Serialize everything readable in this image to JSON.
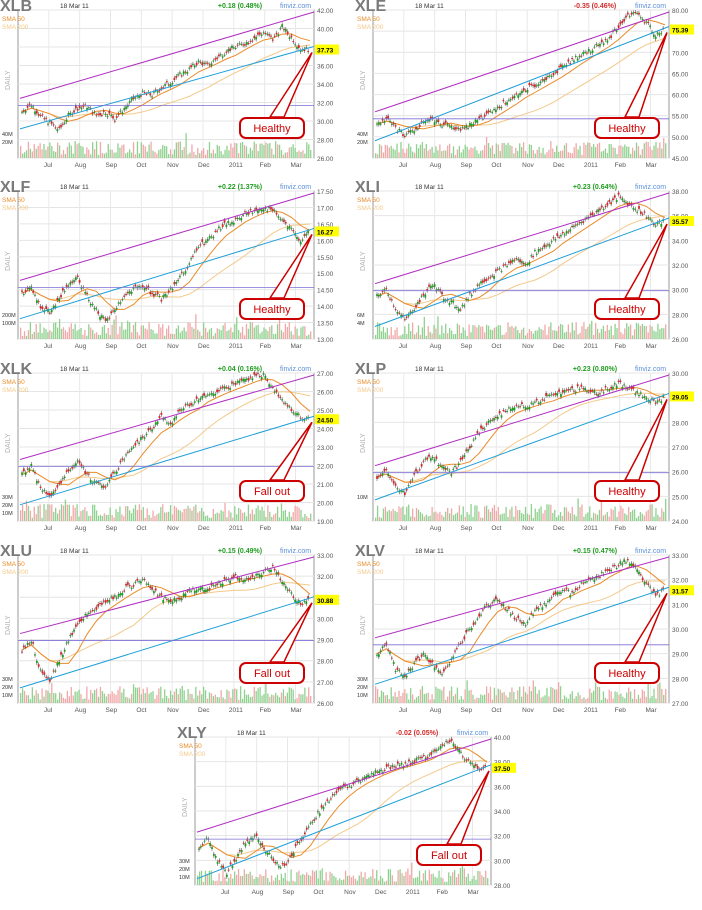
{
  "chart_data": [
    {
      "type": "candlestick",
      "ticker": "XLB",
      "date": "18 Mar 11",
      "change": "+0.18 (0.48%)",
      "change_sign": "up",
      "watermark": "finviz.com",
      "sma_labels": [
        "SMA 50",
        "SMA 200"
      ],
      "period_label": "DAILY",
      "x_labels": [
        "Jul",
        "Aug",
        "Sep",
        "Oct",
        "Nov",
        "Dec",
        "2011",
        "Feb",
        "Mar"
      ],
      "y_ticks": [
        "42.00",
        "40.00",
        "38.00",
        "36.00",
        "34.00",
        "32.00",
        "30.00",
        "28.00",
        "26.00"
      ],
      "ylim": [
        26,
        42
      ],
      "volume_ticks": [
        "40M",
        "20M"
      ],
      "last_price": "37.73",
      "close_series": [
        31.0,
        31.8,
        30.5,
        29.8,
        29.0,
        30.6,
        31.4,
        31.6,
        30.6,
        31.0,
        30.2,
        31.4,
        32.4,
        33.0,
        32.8,
        33.6,
        34.2,
        35.0,
        35.6,
        36.4,
        36.0,
        36.8,
        37.6,
        38.0,
        38.4,
        39.0,
        39.6,
        38.8,
        40.2,
        39.0,
        37.8,
        37.73
      ],
      "annotation": "Healthy",
      "callout_color": "#cc0000"
    },
    {
      "type": "candlestick",
      "ticker": "XLE",
      "date": "18 Mar 11",
      "change": "-0.35 (0.46%)",
      "change_sign": "down",
      "watermark": "finviz.com",
      "sma_labels": [
        "SMA 50",
        "SMA 200"
      ],
      "period_label": "DAILY",
      "x_labels": [
        "Jul",
        "Aug",
        "Sep",
        "Oct",
        "Nov",
        "Dec",
        "2011",
        "Feb",
        "Mar"
      ],
      "y_ticks": [
        "80.00",
        "75.00",
        "70.00",
        "65.00",
        "60.00",
        "55.00",
        "50.00",
        "45.00"
      ],
      "ylim": [
        45,
        80
      ],
      "volume_ticks": [
        "40M",
        "20M"
      ],
      "last_price": "75.39",
      "close_series": [
        53.0,
        54.5,
        52.0,
        50.5,
        51.5,
        53.5,
        54.0,
        53.0,
        52.5,
        51.5,
        53.0,
        54.5,
        55.5,
        57.0,
        58.5,
        60.0,
        61.5,
        62.0,
        63.5,
        65.0,
        66.5,
        68.0,
        69.5,
        70.5,
        72.0,
        73.5,
        76.0,
        78.5,
        79.5,
        77.0,
        74.0,
        75.39
      ],
      "annotation": "Healthy",
      "callout_color": "#cc0000"
    },
    {
      "type": "candlestick",
      "ticker": "XLF",
      "date": "18 Mar 11",
      "change": "+0.22 (1.37%)",
      "change_sign": "up",
      "watermark": "finviz.com",
      "sma_labels": [
        "SMA 50",
        "SMA 200"
      ],
      "period_label": "DAILY",
      "x_labels": [
        "Jul",
        "Aug",
        "Sep",
        "Oct",
        "Nov",
        "Dec",
        "2011",
        "Feb",
        "Mar"
      ],
      "y_ticks": [
        "17.50",
        "17.00",
        "16.50",
        "16.00",
        "15.50",
        "15.00",
        "14.50",
        "14.00",
        "13.50",
        "13.00"
      ],
      "ylim": [
        13,
        17.5
      ],
      "volume_ticks": [
        "200M",
        "100M"
      ],
      "last_price": "16.27",
      "close_series": [
        14.4,
        14.6,
        14.0,
        13.8,
        14.2,
        14.7,
        14.9,
        14.3,
        13.9,
        13.5,
        13.9,
        14.3,
        14.5,
        14.6,
        14.4,
        14.2,
        14.5,
        14.9,
        15.3,
        15.8,
        16.0,
        16.3,
        16.5,
        16.6,
        16.8,
        16.9,
        17.0,
        16.9,
        16.6,
        16.3,
        16.0,
        16.27
      ],
      "annotation": "Healthy",
      "callout_color": "#cc0000"
    },
    {
      "type": "candlestick",
      "ticker": "XLI",
      "date": "18 Mar 11",
      "change": "+0.23 (0.64%)",
      "change_sign": "up",
      "watermark": "finviz.com",
      "sma_labels": [
        "SMA 50",
        "SMA 200"
      ],
      "period_label": "DAILY",
      "x_labels": [
        "Jul",
        "Aug",
        "Sep",
        "Oct",
        "Nov",
        "Dec",
        "2011",
        "Feb",
        "Mar"
      ],
      "y_ticks": [
        "38.00",
        "36.00",
        "34.00",
        "32.00",
        "30.00",
        "28.00",
        "26.00"
      ],
      "ylim": [
        26,
        38
      ],
      "volume_ticks": [
        "6M",
        "4M"
      ],
      "last_price": "35.57",
      "close_series": [
        29.5,
        30.0,
        28.5,
        27.5,
        28.5,
        29.5,
        30.5,
        29.5,
        29.0,
        28.5,
        29.5,
        30.5,
        31.0,
        31.5,
        32.0,
        32.5,
        32.0,
        33.0,
        33.5,
        34.0,
        34.5,
        35.0,
        35.5,
        36.0,
        36.5,
        37.0,
        37.5,
        37.0,
        36.5,
        36.0,
        35.3,
        35.57
      ],
      "annotation": "Healthy",
      "callout_color": "#cc0000"
    },
    {
      "type": "candlestick",
      "ticker": "XLK",
      "date": "18 Mar 11",
      "change": "+0.04 (0.16%)",
      "change_sign": "up",
      "watermark": "finviz.com",
      "sma_labels": [
        "SMA 50",
        "SMA 200"
      ],
      "period_label": "DAILY",
      "x_labels": [
        "Jul",
        "Aug",
        "Sep",
        "Oct",
        "Nov",
        "Dec",
        "2011",
        "Feb",
        "Mar"
      ],
      "y_ticks": [
        "27.00",
        "26.00",
        "25.00",
        "24.00",
        "23.00",
        "22.00",
        "21.00",
        "20.00",
        "19.00"
      ],
      "ylim": [
        19,
        27
      ],
      "volume_ticks": [
        "30M",
        "20M",
        "10M"
      ],
      "last_price": "24.50",
      "close_series": [
        21.5,
        22.0,
        20.8,
        20.2,
        21.0,
        21.8,
        22.2,
        21.5,
        21.0,
        20.8,
        21.6,
        22.4,
        23.0,
        23.5,
        24.0,
        24.6,
        24.2,
        25.0,
        25.3,
        25.6,
        25.8,
        26.0,
        26.2,
        26.4,
        26.6,
        26.8,
        26.9,
        26.2,
        25.6,
        25.0,
        24.6,
        24.5
      ],
      "annotation": "Fall out",
      "callout_color": "#cc0000"
    },
    {
      "type": "candlestick",
      "ticker": "XLP",
      "date": "18 Mar 11",
      "change": "+0.23 (0.80%)",
      "change_sign": "up",
      "watermark": "finviz.com",
      "sma_labels": [
        "SMA 50",
        "SMA 200"
      ],
      "period_label": "DAILY",
      "x_labels": [
        "Jul",
        "Aug",
        "Sep",
        "Oct",
        "Nov",
        "Dec",
        "2011",
        "Feb",
        "Mar"
      ],
      "y_ticks": [
        "30.00",
        "29.00",
        "28.00",
        "27.00",
        "26.00",
        "25.00",
        "24.00"
      ],
      "ylim": [
        24,
        30
      ],
      "volume_ticks": [
        "10M"
      ],
      "last_price": "29.05",
      "close_series": [
        25.8,
        26.0,
        25.4,
        25.1,
        25.8,
        26.4,
        26.6,
        26.2,
        26.0,
        26.4,
        27.0,
        27.6,
        28.0,
        28.3,
        28.5,
        28.7,
        28.6,
        28.8,
        29.0,
        29.1,
        29.2,
        29.3,
        29.4,
        29.3,
        29.2,
        29.4,
        29.6,
        29.4,
        29.2,
        29.0,
        28.8,
        29.05
      ],
      "annotation": "Healthy",
      "callout_color": "#cc0000"
    },
    {
      "type": "candlestick",
      "ticker": "XLU",
      "date": "18 Mar 11",
      "change": "+0.15 (0.49%)",
      "change_sign": "up",
      "watermark": "finviz.com",
      "sma_labels": [
        "SMA 50",
        "SMA 200"
      ],
      "period_label": "DAILY",
      "x_labels": [
        "Jul",
        "Aug",
        "Sep",
        "Oct",
        "Nov",
        "Dec",
        "2011",
        "Feb",
        "Mar"
      ],
      "y_ticks": [
        "33.00",
        "32.00",
        "31.00",
        "30.00",
        "29.00",
        "28.00",
        "27.00",
        "26.00"
      ],
      "ylim": [
        26,
        33
      ],
      "volume_ticks": [
        "30M",
        "20M",
        "10M"
      ],
      "last_price": "30.88",
      "close_series": [
        28.5,
        29.0,
        27.5,
        27.0,
        28.0,
        29.0,
        29.8,
        30.2,
        30.5,
        30.8,
        31.0,
        31.4,
        31.6,
        31.8,
        31.4,
        31.0,
        30.8,
        31.0,
        31.3,
        31.5,
        31.4,
        31.6,
        31.8,
        32.0,
        31.8,
        32.0,
        32.2,
        32.4,
        31.8,
        31.2,
        30.7,
        30.88
      ],
      "annotation": "Fall out",
      "callout_color": "#cc0000"
    },
    {
      "type": "candlestick",
      "ticker": "XLV",
      "date": "18 Mar 11",
      "change": "+0.15 (0.47%)",
      "change_sign": "up",
      "watermark": "finviz.com",
      "sma_labels": [
        "SMA 50",
        "SMA 200"
      ],
      "period_label": "DAILY",
      "x_labels": [
        "Jul",
        "Aug",
        "Sep",
        "Oct",
        "Nov",
        "Dec",
        "2011",
        "Feb",
        "Mar"
      ],
      "y_ticks": [
        "33.00",
        "32.00",
        "31.00",
        "30.00",
        "29.00",
        "28.00",
        "27.00"
      ],
      "ylim": [
        27,
        33
      ],
      "volume_ticks": [
        "30M",
        "20M",
        "10M"
      ],
      "last_price": "31.57",
      "close_series": [
        29.0,
        29.4,
        28.4,
        28.0,
        28.6,
        29.0,
        28.6,
        28.2,
        28.8,
        29.4,
        30.0,
        30.6,
        31.0,
        31.2,
        30.8,
        30.4,
        30.2,
        30.8,
        31.0,
        31.4,
        31.6,
        31.4,
        31.8,
        32.0,
        32.2,
        32.4,
        32.6,
        32.8,
        32.4,
        31.8,
        31.4,
        31.57
      ],
      "annotation": "Healthy",
      "callout_color": "#cc0000"
    },
    {
      "type": "candlestick",
      "ticker": "XLY",
      "date": "18 Mar 11",
      "change": "-0.02 (0.05%)",
      "change_sign": "down",
      "watermark": "finviz.com",
      "sma_labels": [
        "SMA 50",
        "SMA 200"
      ],
      "period_label": "DAILY",
      "x_labels": [
        "Jul",
        "Aug",
        "Sep",
        "Oct",
        "Nov",
        "Dec",
        "2011",
        "Feb",
        "Mar"
      ],
      "y_ticks": [
        "40.00",
        "38.00",
        "36.00",
        "34.00",
        "32.00",
        "30.00",
        "28.00"
      ],
      "ylim": [
        28,
        40
      ],
      "volume_ticks": [
        "30M",
        "20M",
        "10M"
      ],
      "last_price": "37.50",
      "close_series": [
        31.0,
        31.8,
        30.0,
        29.0,
        30.2,
        31.5,
        32.0,
        31.0,
        30.0,
        29.5,
        30.5,
        31.8,
        33.0,
        34.0,
        34.8,
        35.6,
        36.0,
        36.4,
        36.8,
        37.2,
        37.4,
        37.6,
        37.8,
        38.0,
        38.3,
        38.6,
        39.4,
        39.8,
        38.8,
        38.0,
        37.5,
        37.5
      ],
      "annotation": "Fall out",
      "callout_color": "#cc0000"
    }
  ]
}
